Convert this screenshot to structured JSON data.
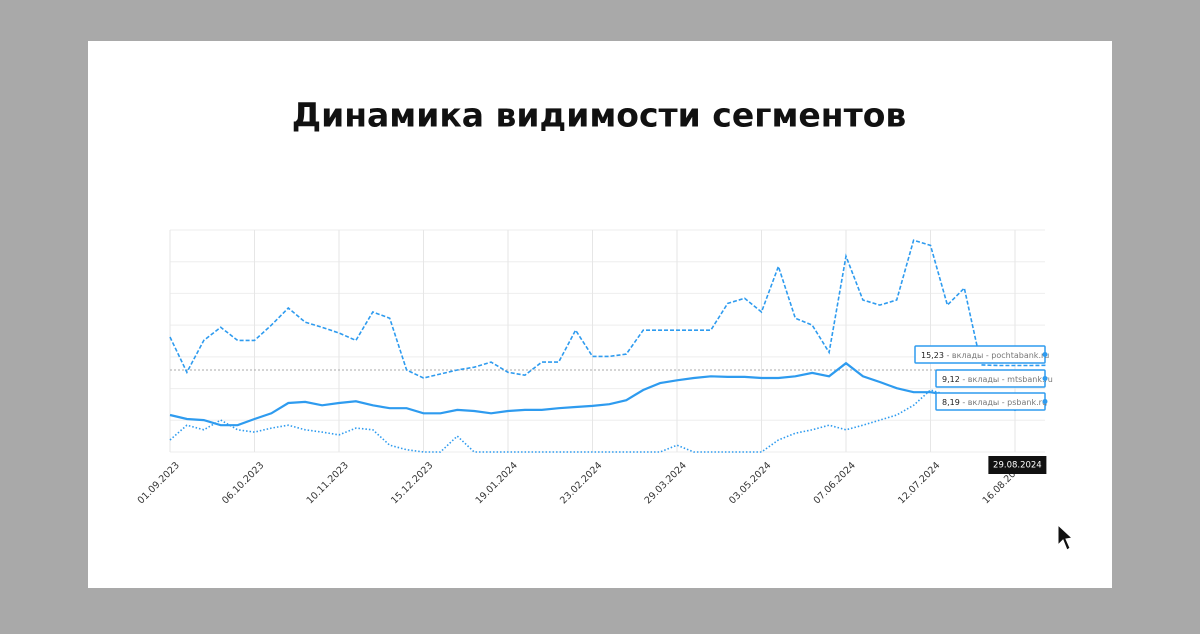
{
  "chart_data": {
    "type": "line",
    "title": "Динамика видимости сегментов",
    "x": [
      "01.09.2023",
      "08.09.2023",
      "15.09.2023",
      "22.09.2023",
      "29.09.2023",
      "06.10.2023",
      "13.10.2023",
      "20.10.2023",
      "27.10.2023",
      "03.11.2023",
      "10.11.2023",
      "17.11.2023",
      "24.11.2023",
      "01.12.2023",
      "08.12.2023",
      "15.12.2023",
      "22.12.2023",
      "29.12.2023",
      "05.01.2024",
      "12.01.2024",
      "19.01.2024",
      "26.01.2024",
      "02.02.2024",
      "09.02.2024",
      "16.02.2024",
      "23.02.2024",
      "01.03.2024",
      "08.03.2024",
      "15.03.2024",
      "22.03.2024",
      "29.03.2024",
      "05.04.2024",
      "12.04.2024",
      "19.04.2024",
      "26.04.2024",
      "03.05.2024",
      "10.05.2024",
      "17.05.2024",
      "24.05.2024",
      "31.05.2024",
      "07.06.2024",
      "14.06.2024",
      "21.06.2024",
      "28.06.2024",
      "05.07.2024",
      "12.07.2024",
      "19.07.2024",
      "26.07.2024",
      "02.08.2024",
      "09.08.2024",
      "16.08.2024",
      "23.08.2024",
      "29.08.2024"
    ],
    "xticks": [
      "01.09.2023",
      "06.10.2023",
      "10.11.2023",
      "15.12.2023",
      "19.01.2024",
      "23.02.2024",
      "29.03.2024",
      "03.05.2024",
      "07.06.2024",
      "12.07.2024",
      "16.08.2024"
    ],
    "ylim": [
      0,
      39
    ],
    "grid": true,
    "tooltip_separator": " - ",
    "series": [
      {
        "name": "вклады - pochtabank.ru",
        "color": "#2e9bef",
        "dash": "dashed",
        "values": [
          20.2,
          14,
          19.6,
          21.9,
          19.6,
          19.6,
          22.3,
          25.3,
          22.8,
          21.9,
          20.9,
          19.6,
          24.6,
          23.5,
          14.4,
          13,
          13.7,
          14.4,
          14.9,
          15.8,
          14,
          13.5,
          15.8,
          15.8,
          21.4,
          16.8,
          16.8,
          17.2,
          21.4,
          21.4,
          21.4,
          21.4,
          21.4,
          26.1,
          27,
          24.6,
          32.6,
          23.5,
          22.3,
          17.5,
          34.4,
          26.7,
          25.8,
          26.7,
          37.2,
          36.3,
          25.8,
          28.8,
          15.3,
          15.2,
          15.2,
          15.2,
          15.23
        ],
        "value_labels": [
          null,
          null,
          null,
          null,
          null,
          null,
          null,
          null,
          null,
          null,
          null,
          null,
          null,
          null,
          null,
          null,
          null,
          null,
          null,
          null,
          null,
          null,
          null,
          null,
          null,
          null,
          null,
          null,
          null,
          null,
          null,
          null,
          null,
          null,
          null,
          null,
          null,
          null,
          null,
          null,
          null,
          null,
          null,
          null,
          null,
          null,
          null,
          null,
          null,
          null,
          null,
          null,
          "15,23"
        ]
      },
      {
        "name": "вклады - mtsbank.ru",
        "color": "#2e9bef",
        "dash": "solid",
        "values": [
          6.5,
          5.8,
          5.6,
          4.7,
          4.7,
          5.8,
          6.8,
          8.6,
          8.8,
          8.2,
          8.6,
          8.9,
          8.2,
          7.7,
          7.7,
          6.8,
          6.8,
          7.4,
          7.2,
          6.8,
          7.2,
          7.4,
          7.4,
          7.7,
          7.9,
          8.1,
          8.4,
          9.1,
          10.9,
          12.1,
          12.6,
          13,
          13.3,
          13.2,
          13.2,
          13,
          13,
          13.3,
          13.9,
          13.3,
          15.6,
          13.3,
          12.3,
          11.2,
          10.5,
          10.5,
          10,
          9.5,
          9.1,
          8.8,
          7.4,
          8.6,
          9.12
        ],
        "value_labels": [
          null,
          null,
          null,
          null,
          null,
          null,
          null,
          null,
          null,
          null,
          null,
          null,
          null,
          null,
          null,
          null,
          null,
          null,
          null,
          null,
          null,
          null,
          null,
          null,
          null,
          null,
          null,
          null,
          null,
          null,
          null,
          null,
          null,
          null,
          null,
          null,
          null,
          null,
          null,
          null,
          null,
          null,
          null,
          null,
          null,
          null,
          null,
          null,
          null,
          null,
          null,
          null,
          "9,12"
        ]
      },
      {
        "name": "вклады - psbank.ru",
        "color": "#2e9bef",
        "dash": "dotted",
        "values": [
          2.1,
          4.7,
          3.9,
          5.6,
          3.9,
          3.5,
          4.2,
          4.7,
          3.9,
          3.5,
          3,
          4.2,
          3.9,
          1.2,
          0.4,
          0,
          0,
          2.8,
          0,
          0,
          0,
          0,
          0,
          0,
          0,
          0,
          0,
          0,
          0,
          0,
          1.2,
          0,
          0,
          0,
          0,
          0,
          2.1,
          3.3,
          3.9,
          4.7,
          3.9,
          4.7,
          5.6,
          6.5,
          8.2,
          10.9,
          10,
          9.1,
          8.8,
          9.1,
          8.9,
          8.9,
          8.19
        ],
        "value_labels": [
          null,
          null,
          null,
          null,
          null,
          null,
          null,
          null,
          null,
          null,
          null,
          null,
          null,
          null,
          null,
          null,
          null,
          null,
          null,
          null,
          null,
          null,
          null,
          null,
          null,
          null,
          null,
          null,
          null,
          null,
          null,
          null,
          null,
          null,
          null,
          null,
          null,
          null,
          null,
          null,
          null,
          null,
          null,
          null,
          null,
          null,
          null,
          null,
          null,
          null,
          null,
          null,
          "8,19"
        ]
      }
    ]
  }
}
